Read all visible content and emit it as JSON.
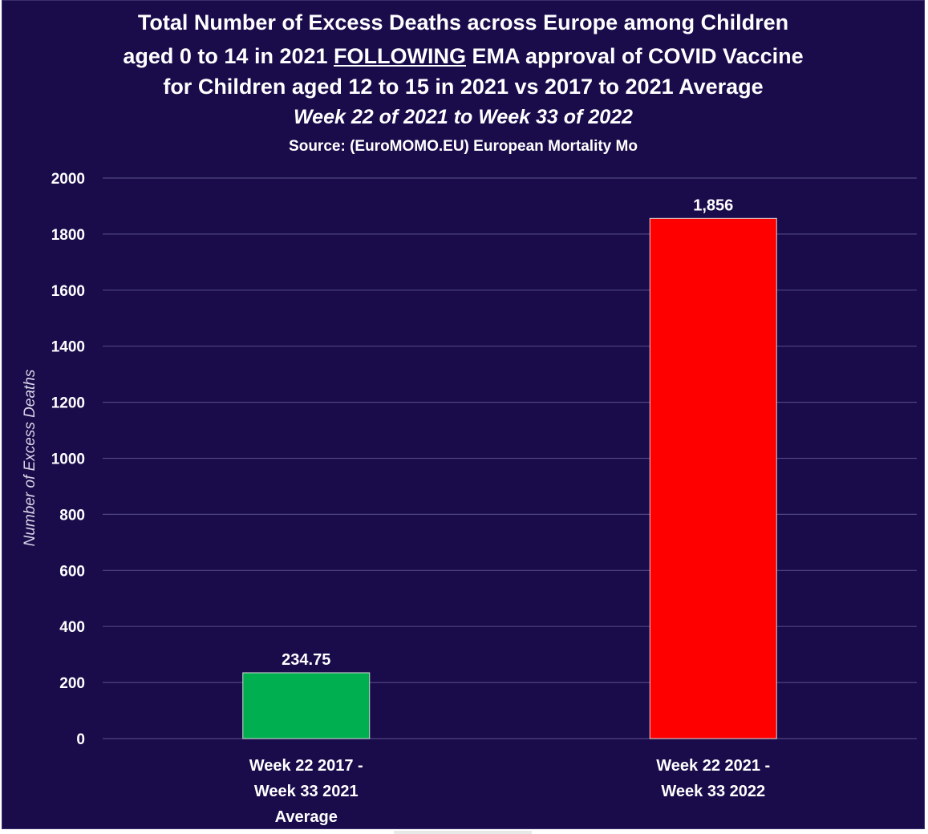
{
  "colors": {
    "background": "#1a0b4b",
    "gridline": "#4f4680",
    "text": "#ffffff",
    "axis_label": "#d9d6e8"
  },
  "chart_data": {
    "type": "bar",
    "title": {
      "line1": "Total Number of Excess Deaths across Europe among Children",
      "line2_pre": "aged 0 to 14 in 2021 ",
      "line2_emph": "FOLLOWING",
      "line2_post": " EMA approval of COVID Vaccine",
      "line3": "for Children aged 12 to 15 in 2021 vs 2017 to 2021 Average"
    },
    "subtitle": "Week 22 of 2021 to Week 33 of 2022",
    "source": "Source: (EuroMOMO.EU) European Mortality Mo",
    "ylabel": "Number of Excess Deaths",
    "xlabel": "",
    "ylim": [
      0,
      2000
    ],
    "yticks": [
      0,
      200,
      400,
      600,
      800,
      1000,
      1200,
      1400,
      1600,
      1800,
      2000
    ],
    "grid": true,
    "categories": [
      [
        "Week 22 2017 -",
        "Week 33 2021",
        "Average"
      ],
      [
        "Week 22 2021 -",
        "Week 33 2022"
      ]
    ],
    "values": [
      234.75,
      1856
    ],
    "value_labels": [
      "234.75",
      "1,856"
    ],
    "bar_colors": [
      "#00b050",
      "#ff0000"
    ]
  }
}
